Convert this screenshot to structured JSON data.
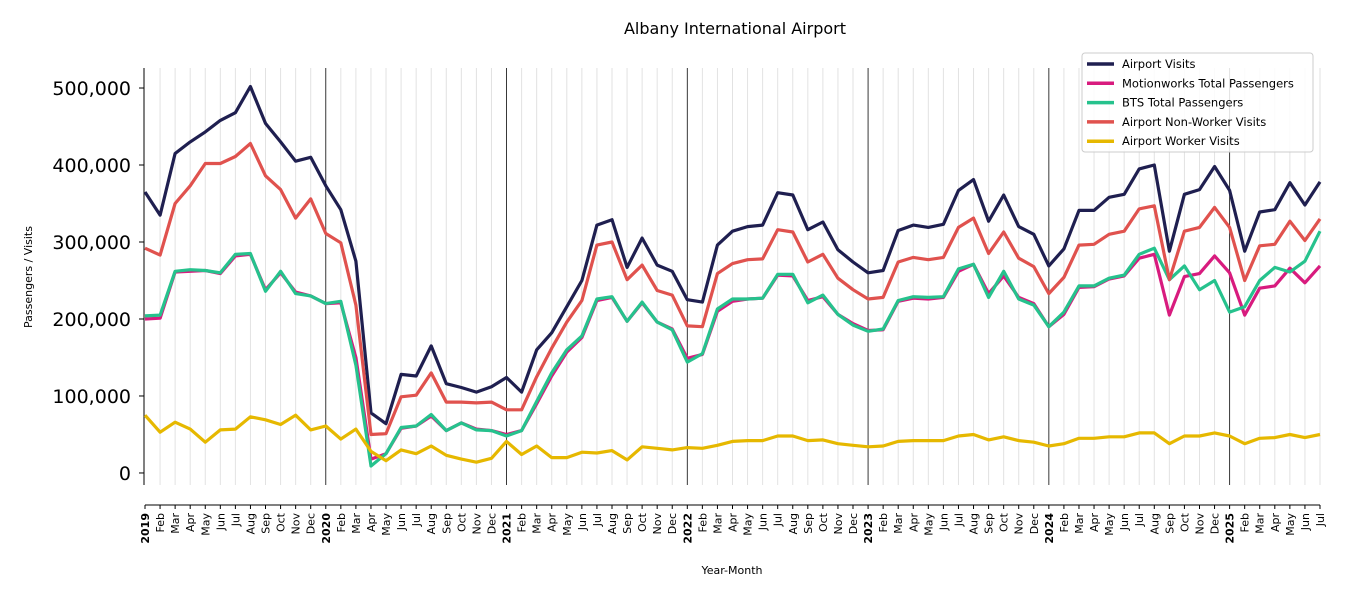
{
  "chart_data": {
    "type": "line",
    "title": "Albany International Airport",
    "xlabel": "Year-Month",
    "ylabel": "Passengers / Visits",
    "ylim": [
      -41600,
      526000
    ],
    "yticks": [
      0,
      100000,
      200000,
      300000,
      400000,
      500000
    ],
    "ytick_labels": [
      "0",
      "100,000",
      "200,000",
      "300,000",
      "400,000",
      "500,000"
    ],
    "grid": "vertical monthly, black line at each year start",
    "legend_position": "top-right",
    "years": [
      "2019",
      "2020",
      "2021",
      "2022",
      "2023",
      "2024",
      "2025"
    ],
    "months": [
      "Jan",
      "Feb",
      "Mar",
      "Apr",
      "May",
      "Jun",
      "Jul",
      "Aug",
      "Sep",
      "Oct",
      "Nov",
      "Dec"
    ],
    "start": "2019-01",
    "end": "2025-07",
    "series": [
      {
        "name": "Airport Visits",
        "color": "#1f1f50",
        "values": [
          365000,
          335000,
          415000,
          430000,
          443000,
          458000,
          468000,
          502000,
          454000,
          430000,
          405000,
          410000,
          373000,
          342000,
          275000,
          78000,
          64000,
          128000,
          126000,
          165000,
          116000,
          111000,
          105000,
          112000,
          124000,
          105000,
          160000,
          182000,
          216000,
          250000,
          322000,
          329000,
          267000,
          305000,
          270000,
          262000,
          225000,
          222000,
          296000,
          314000,
          320000,
          322000,
          364000,
          361000,
          316000,
          326000,
          290000,
          274000,
          260000,
          263000,
          315000,
          322000,
          319000,
          323000,
          367000,
          381000,
          327000,
          361000,
          320000,
          310000,
          269000,
          291000,
          341000,
          341000,
          358000,
          362000,
          395000,
          400000,
          288000,
          362000,
          368000,
          398000,
          367000,
          288000,
          339000,
          342000,
          377000,
          348000,
          378000
        ]
      },
      {
        "name": "Motionworks Total Passengers",
        "color": "#d81b7e",
        "values": [
          200000,
          201000,
          261000,
          262000,
          263000,
          259000,
          282000,
          284000,
          238000,
          260000,
          235000,
          230000,
          220000,
          221000,
          150000,
          18000,
          25000,
          58000,
          61000,
          74000,
          55000,
          65000,
          57000,
          55000,
          50000,
          55000,
          90000,
          126000,
          157000,
          176000,
          224000,
          228000,
          197000,
          221000,
          196000,
          187000,
          149000,
          154000,
          210000,
          223000,
          226000,
          227000,
          257000,
          256000,
          224000,
          229000,
          206000,
          194000,
          185000,
          186000,
          223000,
          227000,
          226000,
          228000,
          262000,
          271000,
          233000,
          256000,
          228000,
          220000,
          190000,
          206000,
          241000,
          242000,
          252000,
          256000,
          279000,
          284000,
          205000,
          255000,
          259000,
          282000,
          260000,
          205000,
          240000,
          243000,
          266000,
          247000,
          269000
        ]
      },
      {
        "name": "BTS Total Passengers",
        "color": "#26c28d",
        "values": [
          204000,
          205000,
          262000,
          264000,
          263000,
          260000,
          284000,
          285000,
          236000,
          262000,
          233000,
          230000,
          220000,
          223000,
          140000,
          9000,
          25000,
          59000,
          61000,
          76000,
          55000,
          65000,
          56000,
          55000,
          48000,
          55000,
          93000,
          130000,
          160000,
          178000,
          226000,
          229000,
          197000,
          222000,
          196000,
          186000,
          144000,
          155000,
          213000,
          226000,
          226000,
          227000,
          258000,
          258000,
          221000,
          231000,
          206000,
          192000,
          184000,
          187000,
          224000,
          229000,
          228000,
          229000,
          265000,
          271000,
          228000,
          262000,
          226000,
          218000,
          190000,
          209000,
          243000,
          243000,
          253000,
          257000,
          284000,
          292000,
          251000,
          269000,
          238000,
          250000,
          209000,
          216000,
          250000,
          267000,
          261000,
          275000,
          314000
        ]
      },
      {
        "name": "Airport Non-Worker Visits",
        "color": "#e0524e",
        "values": [
          292000,
          283000,
          350000,
          373000,
          402000,
          402000,
          411000,
          428000,
          386000,
          368000,
          331000,
          356000,
          311000,
          299000,
          218000,
          50000,
          51000,
          99000,
          101000,
          130000,
          92000,
          92000,
          91000,
          92000,
          82000,
          82000,
          125000,
          162000,
          196000,
          224000,
          296000,
          300000,
          251000,
          270000,
          237000,
          231000,
          191000,
          190000,
          259000,
          272000,
          277000,
          278000,
          316000,
          313000,
          274000,
          284000,
          253000,
          238000,
          226000,
          228000,
          274000,
          280000,
          277000,
          280000,
          319000,
          331000,
          285000,
          313000,
          279000,
          268000,
          233000,
          254000,
          296000,
          297000,
          310000,
          314000,
          343000,
          347000,
          251000,
          314000,
          319000,
          345000,
          319000,
          250000,
          295000,
          297000,
          327000,
          302000,
          330000
        ]
      },
      {
        "name": "Airport Worker Visits",
        "color": "#e6b800",
        "values": [
          75000,
          53000,
          66000,
          57000,
          40000,
          56000,
          57000,
          73000,
          69000,
          63000,
          75000,
          56000,
          61000,
          44000,
          57000,
          28000,
          16000,
          30000,
          25000,
          35000,
          23000,
          18000,
          14000,
          19000,
          41000,
          24000,
          35000,
          20000,
          20000,
          27000,
          26000,
          29000,
          17000,
          34000,
          32000,
          30000,
          33000,
          32000,
          36000,
          41000,
          42000,
          42000,
          48000,
          48000,
          42000,
          43000,
          38000,
          36000,
          34000,
          35000,
          41000,
          42000,
          42000,
          42000,
          48000,
          50000,
          43000,
          47000,
          42000,
          40000,
          35000,
          38000,
          45000,
          45000,
          47000,
          47000,
          52000,
          52000,
          38000,
          48000,
          48000,
          52000,
          48000,
          38000,
          45000,
          46000,
          50000,
          46000,
          50000
        ]
      }
    ]
  }
}
